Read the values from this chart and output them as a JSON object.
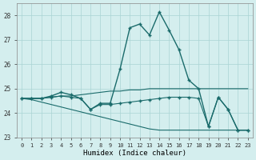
{
  "xlabel": "Humidex (Indice chaleur)",
  "bg_color": "#d4eeee",
  "grid_color": "#aad4d4",
  "line_color": "#1a6b6b",
  "ylim": [
    23,
    28.5
  ],
  "xlim": [
    -0.5,
    23.5
  ],
  "yticks": [
    23,
    24,
    25,
    26,
    27,
    28
  ],
  "xticks": [
    0,
    1,
    2,
    3,
    4,
    5,
    6,
    7,
    8,
    9,
    10,
    11,
    12,
    13,
    14,
    15,
    16,
    17,
    18,
    19,
    20,
    21,
    22,
    23
  ],
  "series": [
    {
      "x": [
        0,
        1,
        2,
        3,
        4,
        5,
        6,
        7,
        8,
        9,
        10,
        11,
        12,
        13,
        14,
        15,
        16,
        17,
        18,
        19,
        20,
        21,
        22,
        23
      ],
      "y": [
        24.6,
        24.6,
        24.6,
        24.7,
        24.85,
        24.75,
        24.6,
        24.15,
        24.4,
        24.4,
        25.8,
        27.5,
        27.65,
        27.2,
        28.15,
        27.4,
        26.6,
        25.35,
        25.0,
        23.45,
        24.65,
        24.15,
        23.3,
        23.3
      ],
      "marker": true,
      "lw": 1.0
    },
    {
      "x": [
        0,
        1,
        2,
        3,
        4,
        5,
        6,
        7,
        8,
        9,
        10,
        11,
        12,
        13,
        14,
        15,
        16,
        17,
        18,
        19,
        20,
        21,
        22,
        23
      ],
      "y": [
        24.6,
        24.6,
        24.6,
        24.65,
        24.7,
        24.7,
        24.75,
        24.8,
        24.85,
        24.9,
        24.9,
        24.95,
        24.95,
        25.0,
        25.0,
        25.0,
        25.0,
        25.0,
        25.0,
        25.0,
        25.0,
        25.0,
        25.0,
        25.0
      ],
      "marker": false,
      "lw": 0.8
    },
    {
      "x": [
        0,
        1,
        2,
        3,
        4,
        5,
        6,
        7,
        8,
        9,
        10,
        11,
        12,
        13,
        14,
        15,
        16,
        17,
        18,
        19,
        20,
        21,
        22,
        23
      ],
      "y": [
        24.6,
        24.55,
        24.45,
        24.35,
        24.25,
        24.15,
        24.05,
        23.95,
        23.85,
        23.75,
        23.65,
        23.55,
        23.45,
        23.35,
        23.3,
        23.3,
        23.3,
        23.3,
        23.3,
        23.3,
        23.3,
        23.3,
        23.3,
        23.3
      ],
      "marker": false,
      "lw": 0.8
    },
    {
      "x": [
        0,
        1,
        2,
        3,
        4,
        5,
        6,
        7,
        8,
        9,
        10,
        11,
        12,
        13,
        14,
        15,
        16,
        17,
        18,
        19,
        20,
        21,
        22,
        23
      ],
      "y": [
        24.6,
        24.6,
        24.6,
        24.65,
        24.7,
        24.65,
        24.6,
        24.15,
        24.35,
        24.35,
        24.4,
        24.45,
        24.5,
        24.55,
        24.6,
        24.65,
        24.65,
        24.65,
        24.6,
        23.45,
        24.65,
        24.15,
        23.3,
        23.3
      ],
      "marker": true,
      "lw": 0.8
    }
  ]
}
